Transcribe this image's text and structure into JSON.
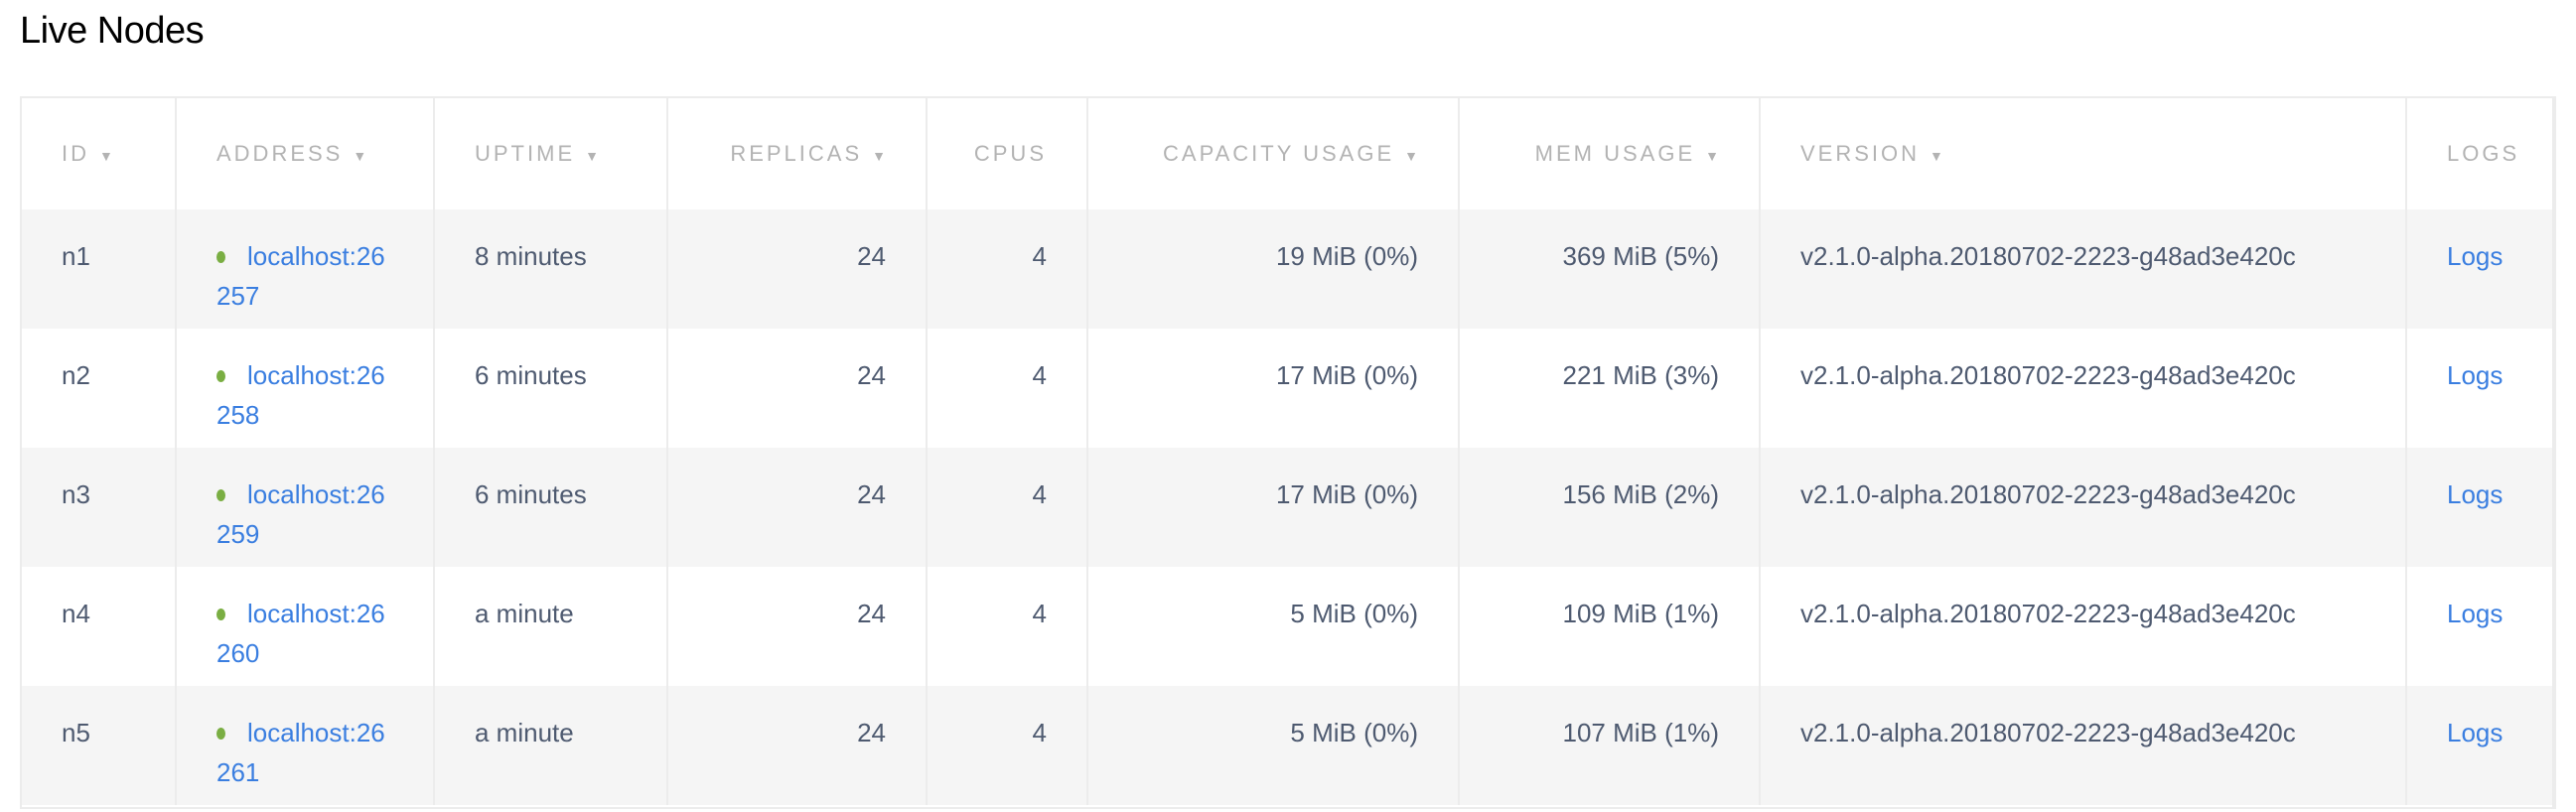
{
  "title": "Live Nodes",
  "colors": {
    "link": "#3a7ee0",
    "status_live": "#7aae43",
    "row_alt": "#f5f5f5"
  },
  "columns": [
    {
      "label": "ID",
      "sortable": true
    },
    {
      "label": "ADDRESS",
      "sortable": true
    },
    {
      "label": "UPTIME",
      "sortable": true
    },
    {
      "label": "REPLICAS",
      "sortable": true
    },
    {
      "label": "CPUS",
      "sortable": false
    },
    {
      "label": "CAPACITY USAGE",
      "sortable": true
    },
    {
      "label": "MEM USAGE",
      "sortable": true
    },
    {
      "label": "VERSION",
      "sortable": true
    },
    {
      "label": "LOGS",
      "sortable": false
    }
  ],
  "sort_icon": "▼",
  "rows": [
    {
      "id": "n1",
      "address": "localhost:26257",
      "uptime": "8 minutes",
      "replicas": "24",
      "cpus": "4",
      "capacity": "19 MiB (0%)",
      "mem": "369 MiB (5%)",
      "version": "v2.1.0-alpha.20180702-2223-g48ad3e420c",
      "logs": "Logs"
    },
    {
      "id": "n2",
      "address": "localhost:26258",
      "uptime": "6 minutes",
      "replicas": "24",
      "cpus": "4",
      "capacity": "17 MiB (0%)",
      "mem": "221 MiB (3%)",
      "version": "v2.1.0-alpha.20180702-2223-g48ad3e420c",
      "logs": "Logs"
    },
    {
      "id": "n3",
      "address": "localhost:26259",
      "uptime": "6 minutes",
      "replicas": "24",
      "cpus": "4",
      "capacity": "17 MiB (0%)",
      "mem": "156 MiB (2%)",
      "version": "v2.1.0-alpha.20180702-2223-g48ad3e420c",
      "logs": "Logs"
    },
    {
      "id": "n4",
      "address": "localhost:26260",
      "uptime": "a minute",
      "replicas": "24",
      "cpus": "4",
      "capacity": "5 MiB (0%)",
      "mem": "109 MiB (1%)",
      "version": "v2.1.0-alpha.20180702-2223-g48ad3e420c",
      "logs": "Logs"
    },
    {
      "id": "n5",
      "address": "localhost:26261",
      "uptime": "a minute",
      "replicas": "24",
      "cpus": "4",
      "capacity": "5 MiB (0%)",
      "mem": "107 MiB (1%)",
      "version": "v2.1.0-alpha.20180702-2223-g48ad3e420c",
      "logs": "Logs"
    }
  ]
}
